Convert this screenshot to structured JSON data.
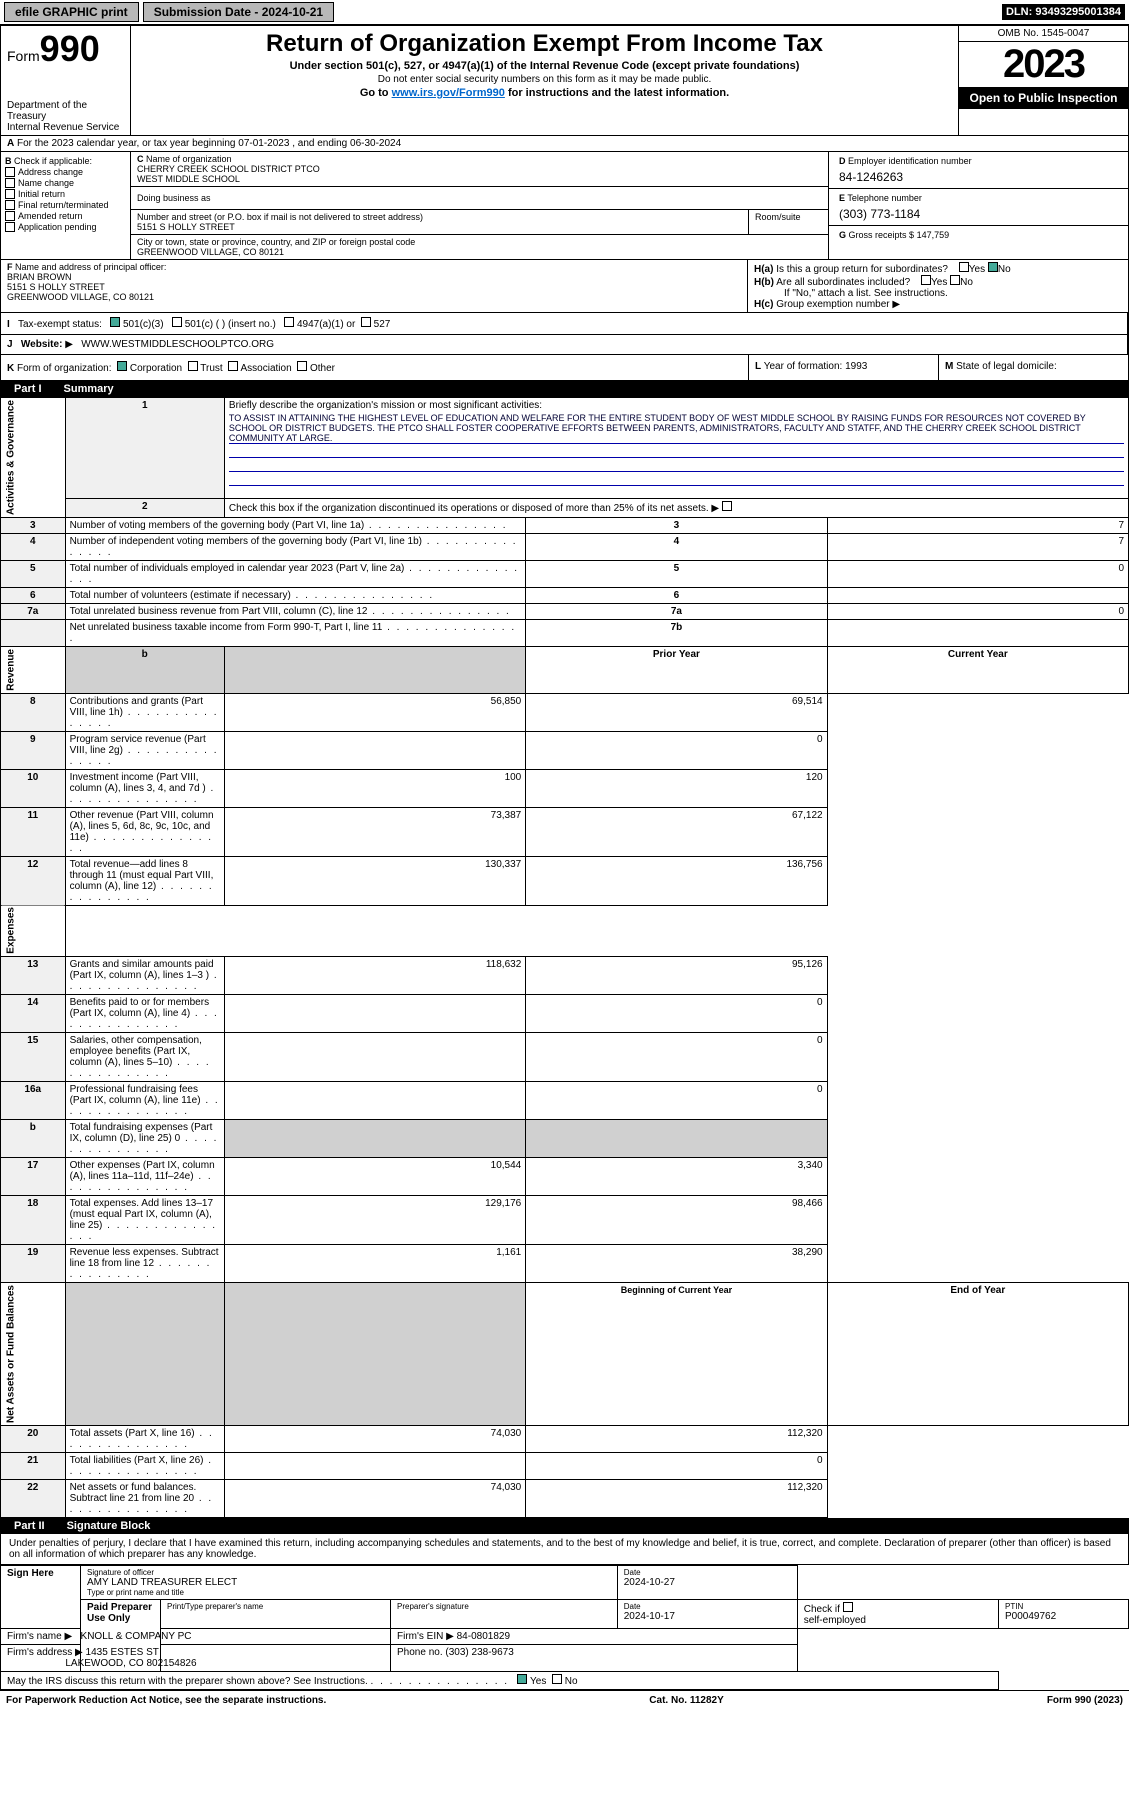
{
  "topbar": {
    "efile": "efile GRAPHIC print",
    "sub_label": "Submission Date - 2024-10-21",
    "dln": "DLN: 93493295001384"
  },
  "header": {
    "form_word": "Form",
    "form_num": "990",
    "dept": "Department of the Treasury",
    "irs": "Internal Revenue Service",
    "title": "Return of Organization Exempt From Income Tax",
    "sub1": "Under section 501(c), 527, or 4947(a)(1) of the Internal Revenue Code (except private foundations)",
    "sub2": "Do not enter social security numbers on this form as it may be made public.",
    "sub3_pre": "Go to ",
    "sub3_link": "www.irs.gov/Form990",
    "sub3_post": " for instructions and the latest information.",
    "omb": "OMB No. 1545-0047",
    "year": "2023",
    "open": "Open to Public Inspection"
  },
  "a": {
    "text": "For the 2023 calendar year, or tax year beginning 07-01-2023   , and ending 06-30-2024"
  },
  "b": {
    "hdr": "Check if applicable:",
    "opts": [
      "Address change",
      "Name change",
      "Initial return",
      "Final return/terminated",
      "Amended return",
      "Application pending"
    ]
  },
  "c": {
    "name_lbl": "Name of organization",
    "name1": "CHERRY CREEK SCHOOL DISTRICT PTCO",
    "name2": "WEST MIDDLE SCHOOL",
    "dba_lbl": "Doing business as",
    "addr_lbl": "Number and street (or P.O. box if mail is not delivered to street address)",
    "addr": "5151 S HOLLY STREET",
    "room_lbl": "Room/suite",
    "city_lbl": "City or town, state or province, country, and ZIP or foreign postal code",
    "city": "GREENWOOD VILLAGE, CO  80121"
  },
  "d": {
    "lbl": "Employer identification number",
    "val": "84-1246263"
  },
  "e": {
    "lbl": "Telephone number",
    "val": "(303) 773-1184"
  },
  "g": {
    "lbl": "Gross receipts $",
    "val": "147,759"
  },
  "f": {
    "lbl": "Name and address of principal officer:",
    "name": "BRIAN BROWN",
    "addr1": "5151 S HOLLY STREET",
    "addr2": "GREENWOOD VILLAGE, CO  80121"
  },
  "h": {
    "a": "Is this a group return for subordinates?",
    "a_ans": "No",
    "b": "Are all subordinates included?",
    "b_note": "If \"No,\" attach a list. See instructions.",
    "c": "Group exemption number"
  },
  "i": {
    "lbl": "Tax-exempt status:",
    "o1": "501(c)(3)",
    "o2": "501(c) (  ) (insert no.)",
    "o3": "4947(a)(1) or",
    "o4": "527"
  },
  "j": {
    "lbl": "Website:",
    "val": "WWW.WESTMIDDLESCHOOLPTCO.ORG"
  },
  "k": {
    "lbl": "Form of organization:",
    "o1": "Corporation",
    "o2": "Trust",
    "o3": "Association",
    "o4": "Other"
  },
  "l": {
    "lbl": "Year of formation:",
    "val": "1993"
  },
  "m": {
    "lbl": "State of legal domicile:"
  },
  "part1": {
    "num": "Part I",
    "title": "Summary"
  },
  "summary": {
    "s1_lbl": "Briefly describe the organization's mission or most significant activities:",
    "mission": "TO ASSIST IN ATTAINING THE HIGHEST LEVEL OF EDUCATION AND WELFARE FOR THE ENTIRE STUDENT BODY OF WEST MIDDLE SCHOOL BY RAISING FUNDS FOR RESOURCES NOT COVERED BY SCHOOL OR DISTRICT BUDGETS. THE PTCO SHALL FOSTER COOPERATIVE EFFORTS BETWEEN PARENTS, ADMINISTRATORS, FACULTY AND STATFF, AND THE CHERRY CREEK SCHOOL DISTRICT COMMUNITY AT LARGE.",
    "s2": "Check this box      if the organization discontinued its operations or disposed of more than 25% of its net assets.",
    "rows_gov": [
      {
        "n": "3",
        "t": "Number of voting members of the governing body (Part VI, line 1a)",
        "rn": "3",
        "v": "7"
      },
      {
        "n": "4",
        "t": "Number of independent voting members of the governing body (Part VI, line 1b)",
        "rn": "4",
        "v": "7"
      },
      {
        "n": "5",
        "t": "Total number of individuals employed in calendar year 2023 (Part V, line 2a)",
        "rn": "5",
        "v": "0"
      },
      {
        "n": "6",
        "t": "Total number of volunteers (estimate if necessary)",
        "rn": "6",
        "v": ""
      },
      {
        "n": "7a",
        "t": "Total unrelated business revenue from Part VIII, column (C), line 12",
        "rn": "7a",
        "v": "0"
      },
      {
        "n": "",
        "t": "Net unrelated business taxable income from Form 990-T, Part I, line 11",
        "rn": "7b",
        "v": ""
      }
    ],
    "prior_hdr": "Prior Year",
    "curr_hdr": "Current Year",
    "rows_rev": [
      {
        "n": "8",
        "t": "Contributions and grants (Part VIII, line 1h)",
        "p": "56,850",
        "c": "69,514"
      },
      {
        "n": "9",
        "t": "Program service revenue (Part VIII, line 2g)",
        "p": "",
        "c": "0"
      },
      {
        "n": "10",
        "t": "Investment income (Part VIII, column (A), lines 3, 4, and 7d )",
        "p": "100",
        "c": "120"
      },
      {
        "n": "11",
        "t": "Other revenue (Part VIII, column (A), lines 5, 6d, 8c, 9c, 10c, and 11e)",
        "p": "73,387",
        "c": "67,122"
      },
      {
        "n": "12",
        "t": "Total revenue—add lines 8 through 11 (must equal Part VIII, column (A), line 12)",
        "p": "130,337",
        "c": "136,756"
      }
    ],
    "rows_exp": [
      {
        "n": "13",
        "t": "Grants and similar amounts paid (Part IX, column (A), lines 1–3 )",
        "p": "118,632",
        "c": "95,126"
      },
      {
        "n": "14",
        "t": "Benefits paid to or for members (Part IX, column (A), line 4)",
        "p": "",
        "c": "0"
      },
      {
        "n": "15",
        "t": "Salaries, other compensation, employee benefits (Part IX, column (A), lines 5–10)",
        "p": "",
        "c": "0"
      },
      {
        "n": "16a",
        "t": "Professional fundraising fees (Part IX, column (A), line 11e)",
        "p": "",
        "c": "0"
      },
      {
        "n": "b",
        "t": "Total fundraising expenses (Part IX, column (D), line 25) 0",
        "p": "SHADE",
        "c": "SHADE"
      },
      {
        "n": "17",
        "t": "Other expenses (Part IX, column (A), lines 11a–11d, 11f–24e)",
        "p": "10,544",
        "c": "3,340"
      },
      {
        "n": "18",
        "t": "Total expenses. Add lines 13–17 (must equal Part IX, column (A), line 25)",
        "p": "129,176",
        "c": "98,466"
      },
      {
        "n": "19",
        "t": "Revenue less expenses. Subtract line 18 from line 12",
        "p": "1,161",
        "c": "38,290"
      }
    ],
    "beg_hdr": "Beginning of Current Year",
    "end_hdr": "End of Year",
    "rows_net": [
      {
        "n": "20",
        "t": "Total assets (Part X, line 16)",
        "p": "74,030",
        "c": "112,320"
      },
      {
        "n": "21",
        "t": "Total liabilities (Part X, line 26)",
        "p": "",
        "c": "0"
      },
      {
        "n": "22",
        "t": "Net assets or fund balances. Subtract line 21 from line 20",
        "p": "74,030",
        "c": "112,320"
      }
    ],
    "side_gov": "Activities & Governance",
    "side_rev": "Revenue",
    "side_exp": "Expenses",
    "side_net": "Net Assets or Fund Balances"
  },
  "part2": {
    "num": "Part II",
    "title": "Signature Block"
  },
  "sig": {
    "decl": "Under penalties of perjury, I declare that I have examined this return, including accompanying schedules and statements, and to the best of my knowledge and belief, it is true, correct, and complete. Declaration of preparer (other than officer) is based on all information of which preparer has any knowledge.",
    "sign_here": "Sign Here",
    "sig_officer": "Signature of officer",
    "officer": "AMY LAND  TREASURER ELECT",
    "type_name": "Type or print name and title",
    "date_lbl": "Date",
    "date_val": "2024-10-27",
    "paid": "Paid Preparer Use Only",
    "prep_name_lbl": "Print/Type preparer's name",
    "prep_sig_lbl": "Preparer's signature",
    "prep_date": "2024-10-17",
    "self_emp": "self-employed",
    "check_if": "Check        if",
    "ptin_lbl": "PTIN",
    "ptin": "P00049762",
    "firm_name_lbl": "Firm's name",
    "firm_name": "KNOLL & COMPANY PC",
    "firm_ein_lbl": "Firm's EIN",
    "firm_ein": "84-0801829",
    "firm_addr_lbl": "Firm's address",
    "firm_addr1": "1435 ESTES ST",
    "firm_addr2": "LAKEWOOD, CO  802154826",
    "phone_lbl": "Phone no.",
    "phone": "(303) 238-9673",
    "discuss": "May the IRS discuss this return with the preparer shown above? See Instructions.",
    "yes": "Yes",
    "no": "No"
  },
  "footer": {
    "pra": "For Paperwork Reduction Act Notice, see the separate instructions.",
    "cat": "Cat. No. 11282Y",
    "form": "Form 990 (2023)"
  },
  "b_letter": "B",
  "c_letter": "C",
  "d_letter": "D",
  "e_letter": "E",
  "f_letter": "F",
  "g_letter": "G",
  "ha_letter": "H(a)",
  "hb_letter": "H(b)",
  "hc_letter": "H(c)",
  "i_letter": "I",
  "j_letter": "J",
  "k_letter": "K",
  "l_letter": "L",
  "m_letter": "M",
  "a_letter": "A",
  "yes_txt": "Yes",
  "no_txt": "No",
  "arrow": "▶"
}
